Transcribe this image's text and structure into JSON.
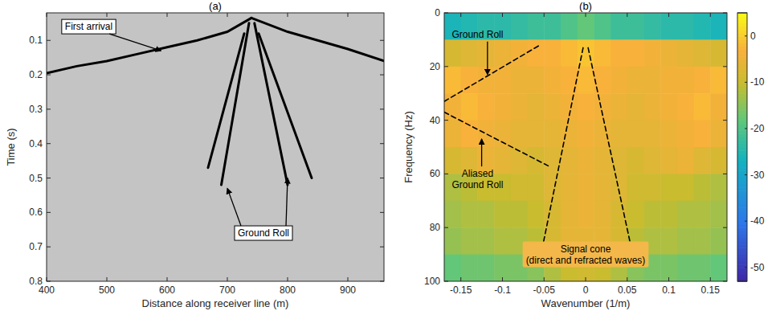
{
  "chart_data": [
    {
      "type": "line",
      "title": "(a)",
      "xlabel": "Distance along receiver line (m)",
      "ylabel": "Time (s)",
      "xlim": [
        400,
        960
      ],
      "xticks": [
        400,
        500,
        600,
        700,
        800,
        900
      ],
      "ylim": [
        0.8,
        0.02
      ],
      "yticks": [
        0.1,
        0.2,
        0.3,
        0.4,
        0.5,
        0.6,
        0.7,
        0.8
      ],
      "grid": false,
      "series": [
        {
          "x": [
            400,
            450,
            500,
            550,
            600,
            650,
            700,
            740
          ],
          "values": [
            0.195,
            0.175,
            0.16,
            0.14,
            0.12,
            0.1,
            0.075,
            0.035
          ],
          "color": "#000000",
          "line_style": "solid"
        },
        {
          "x": [
            740,
            800,
            850,
            900,
            960
          ],
          "values": [
            0.035,
            0.075,
            0.1,
            0.125,
            0.16
          ],
          "color": "#000000",
          "line_style": "solid"
        },
        {
          "x": [
            736,
            690
          ],
          "values": [
            0.05,
            0.52
          ],
          "color": "#000000",
          "line_style": "solid"
        },
        {
          "x": [
            728,
            668
          ],
          "values": [
            0.08,
            0.47
          ],
          "color": "#000000",
          "line_style": "solid"
        },
        {
          "x": [
            745,
            800
          ],
          "values": [
            0.05,
            0.52
          ],
          "color": "#000000",
          "line_style": "solid"
        },
        {
          "x": [
            752,
            840
          ],
          "values": [
            0.08,
            0.5
          ],
          "color": "#000000",
          "line_style": "solid"
        }
      ],
      "annotations": [
        {
          "text": "First arrival",
          "x": 470,
          "y": 0.06,
          "targets": [
            {
              "x": 590,
              "y": 0.13
            }
          ]
        },
        {
          "text": "Ground Roll",
          "x": 760,
          "y": 0.66,
          "targets": [
            {
              "x": 700,
              "y": 0.53
            },
            {
              "x": 800,
              "y": 0.5
            }
          ]
        }
      ]
    },
    {
      "type": "heatmap",
      "title": "(b)",
      "xlabel": "Wavenumber (1/m)",
      "ylabel": "Frequency (Hz)",
      "xlim": [
        -0.17,
        0.17
      ],
      "xticks": [
        -0.15,
        -0.1,
        -0.05,
        0,
        0.05,
        0.1,
        0.15
      ],
      "ylim": [
        100,
        0
      ],
      "yticks": [
        0,
        20,
        40,
        60,
        80,
        100
      ],
      "grid": false,
      "x": [
        -0.16,
        -0.14,
        -0.12,
        -0.1,
        -0.08,
        -0.06,
        -0.04,
        -0.02,
        0,
        0.02,
        0.04,
        0.06,
        0.08,
        0.1,
        0.12,
        0.14,
        0.16
      ],
      "y": [
        5,
        15,
        25,
        35,
        45,
        55,
        65,
        75,
        85,
        95
      ],
      "values": [
        [
          -26,
          -25,
          -24,
          -24,
          -23,
          -22,
          -22,
          -20,
          -18,
          -20,
          -22,
          -22,
          -23,
          -24,
          -24,
          -25,
          -26
        ],
        [
          -8,
          -7,
          -6,
          -5,
          -4,
          -3,
          -3,
          -2,
          -1,
          -2,
          -3,
          -3,
          -4,
          -5,
          -6,
          -7,
          -8
        ],
        [
          -2,
          -3,
          -4,
          -4,
          -5,
          -5,
          -4,
          -3,
          -2,
          -3,
          -4,
          -5,
          -5,
          -4,
          -4,
          -3,
          -2
        ],
        [
          -4,
          -2,
          -3,
          -4,
          -5,
          -6,
          -5,
          -4,
          -3,
          -4,
          -5,
          -6,
          -5,
          -4,
          -3,
          -2,
          -4
        ],
        [
          -5,
          -3,
          -4,
          -5,
          -6,
          -6,
          -6,
          -5,
          -4,
          -5,
          -6,
          -6,
          -6,
          -5,
          -4,
          -3,
          -5
        ],
        [
          -8,
          -7,
          -5,
          -6,
          -7,
          -8,
          -7,
          -6,
          -5,
          -6,
          -7,
          -8,
          -7,
          -6,
          -5,
          -7,
          -8
        ],
        [
          -12,
          -11,
          -10,
          -10,
          -9,
          -9,
          -7,
          -6,
          -5,
          -6,
          -7,
          -9,
          -9,
          -10,
          -10,
          -11,
          -12
        ],
        [
          -13,
          -12,
          -12,
          -11,
          -11,
          -10,
          -8,
          -6,
          -5,
          -6,
          -8,
          -10,
          -11,
          -11,
          -12,
          -12,
          -13
        ],
        [
          -14,
          -13,
          -13,
          -12,
          -12,
          -11,
          -8,
          -6,
          -6,
          -6,
          -8,
          -11,
          -12,
          -12,
          -13,
          -13,
          -14
        ],
        [
          -18,
          -17,
          -17,
          -16,
          -16,
          -15,
          -12,
          -10,
          -9,
          -10,
          -12,
          -15,
          -16,
          -16,
          -17,
          -17,
          -18
        ]
      ],
      "colorbar": {
        "range": [
          -53,
          5
        ],
        "ticks": [
          -50,
          -40,
          -30,
          -20,
          -10,
          0
        ]
      },
      "series": [
        {
          "x": [
            -0.17,
            -0.055
          ],
          "values": [
            33,
            12
          ],
          "color": "#000000",
          "line_style": "dashed"
        },
        {
          "x": [
            -0.17,
            -0.045
          ],
          "values": [
            37,
            57
          ],
          "color": "#000000",
          "line_style": "dashed"
        },
        {
          "x": [
            -0.003,
            -0.055
          ],
          "values": [
            13,
            92
          ],
          "color": "#000000",
          "line_style": "dashed"
        },
        {
          "x": [
            0.003,
            0.058
          ],
          "values": [
            13,
            92
          ],
          "color": "#000000",
          "line_style": "dashed"
        }
      ],
      "annotations": [
        {
          "text": "Ground Roll",
          "x": -0.13,
          "y": 8,
          "targets": [
            {
              "x": -0.118,
              "y": 23
            }
          ]
        },
        {
          "text": "Aliased Ground Roll",
          "x": -0.13,
          "y": 62,
          "targets": [
            {
              "x": -0.125,
              "y": 47
            }
          ]
        },
        {
          "text": "Signal cone (direct and refracted waves)",
          "x": 0,
          "y": 90,
          "targets": []
        }
      ]
    }
  ]
}
